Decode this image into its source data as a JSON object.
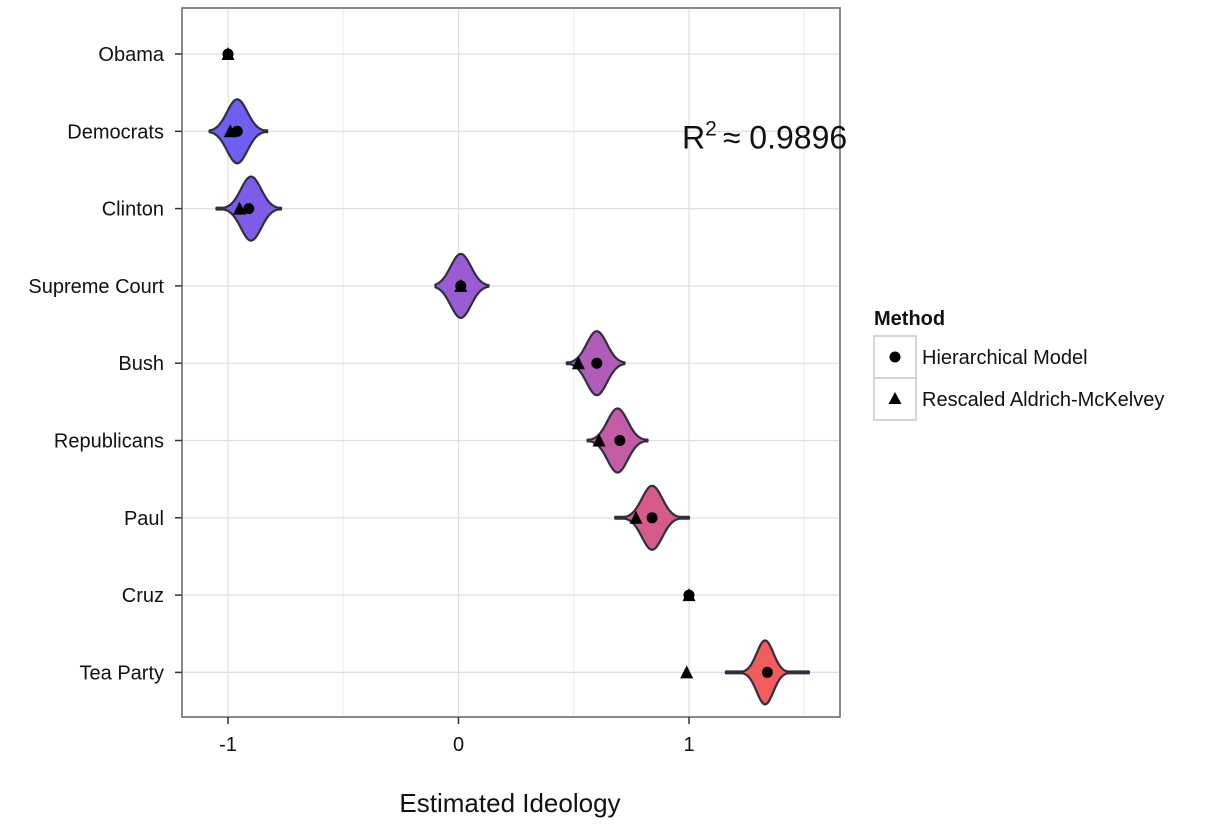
{
  "chart_data": {
    "type": "violin",
    "xlabel": "Estimated Ideology",
    "ylabel": "",
    "xlim": [
      -1.2,
      1.66
    ],
    "x_ticks": [
      -1,
      0,
      1
    ],
    "x_tick_labels": [
      "-1",
      "0",
      "1"
    ],
    "grid": true,
    "categories": [
      "Obama",
      "Democrats",
      "Clinton",
      "Supreme Court",
      "Bush",
      "Republicans",
      "Paul",
      "Cruz",
      "Tea Party"
    ],
    "series": [
      {
        "name": "Hierarchical Model",
        "marker": "circle",
        "values": [
          -1.0,
          -0.96,
          -0.91,
          0.01,
          0.6,
          0.7,
          0.84,
          1.0,
          1.34
        ]
      },
      {
        "name": "Rescaled Aldrich-McKelvey",
        "marker": "triangle",
        "values": [
          -1.0,
          -0.99,
          -0.95,
          0.01,
          0.52,
          0.61,
          0.77,
          1.0,
          0.99
        ]
      }
    ],
    "violins": [
      {
        "category": "Obama",
        "center": -1.0,
        "min": -1.0,
        "max": -1.0,
        "halfwidth": 0,
        "color": "#5f5ff0"
      },
      {
        "category": "Democrats",
        "center": -0.96,
        "min": -1.08,
        "max": -0.83,
        "halfwidth": 0.055,
        "color": "#6e5ff0"
      },
      {
        "category": "Clinton",
        "center": -0.9,
        "min": -1.05,
        "max": -0.77,
        "halfwidth": 0.055,
        "color": "#7f5ce8"
      },
      {
        "category": "Supreme Court",
        "center": 0.01,
        "min": -0.1,
        "max": 0.13,
        "halfwidth": 0.055,
        "color": "#9a5cd2"
      },
      {
        "category": "Bush",
        "center": 0.6,
        "min": 0.47,
        "max": 0.72,
        "halfwidth": 0.055,
        "color": "#b05cb8"
      },
      {
        "category": "Republicans",
        "center": 0.69,
        "min": 0.56,
        "max": 0.82,
        "halfwidth": 0.055,
        "color": "#c25ca6"
      },
      {
        "category": "Paul",
        "center": 0.84,
        "min": 0.68,
        "max": 1.0,
        "halfwidth": 0.055,
        "color": "#d65a8a"
      },
      {
        "category": "Cruz",
        "center": 1.0,
        "min": 1.0,
        "max": 1.0,
        "halfwidth": 0,
        "color": "#e05a78"
      },
      {
        "category": "Tea Party",
        "center": 1.33,
        "min": 1.16,
        "max": 1.52,
        "halfwidth": 0.045,
        "color": "#f25c5c"
      }
    ],
    "annotation": {
      "base": "R",
      "superscript": "2",
      "text": "≈ 0.9896",
      "x": 1.1,
      "y_category": "Democrats"
    },
    "legend": {
      "title": "Method",
      "position": "right",
      "entries": [
        {
          "label": "Hierarchical Model",
          "marker": "circle"
        },
        {
          "label": "Rescaled Aldrich-McKelvey",
          "marker": "triangle"
        }
      ]
    }
  }
}
